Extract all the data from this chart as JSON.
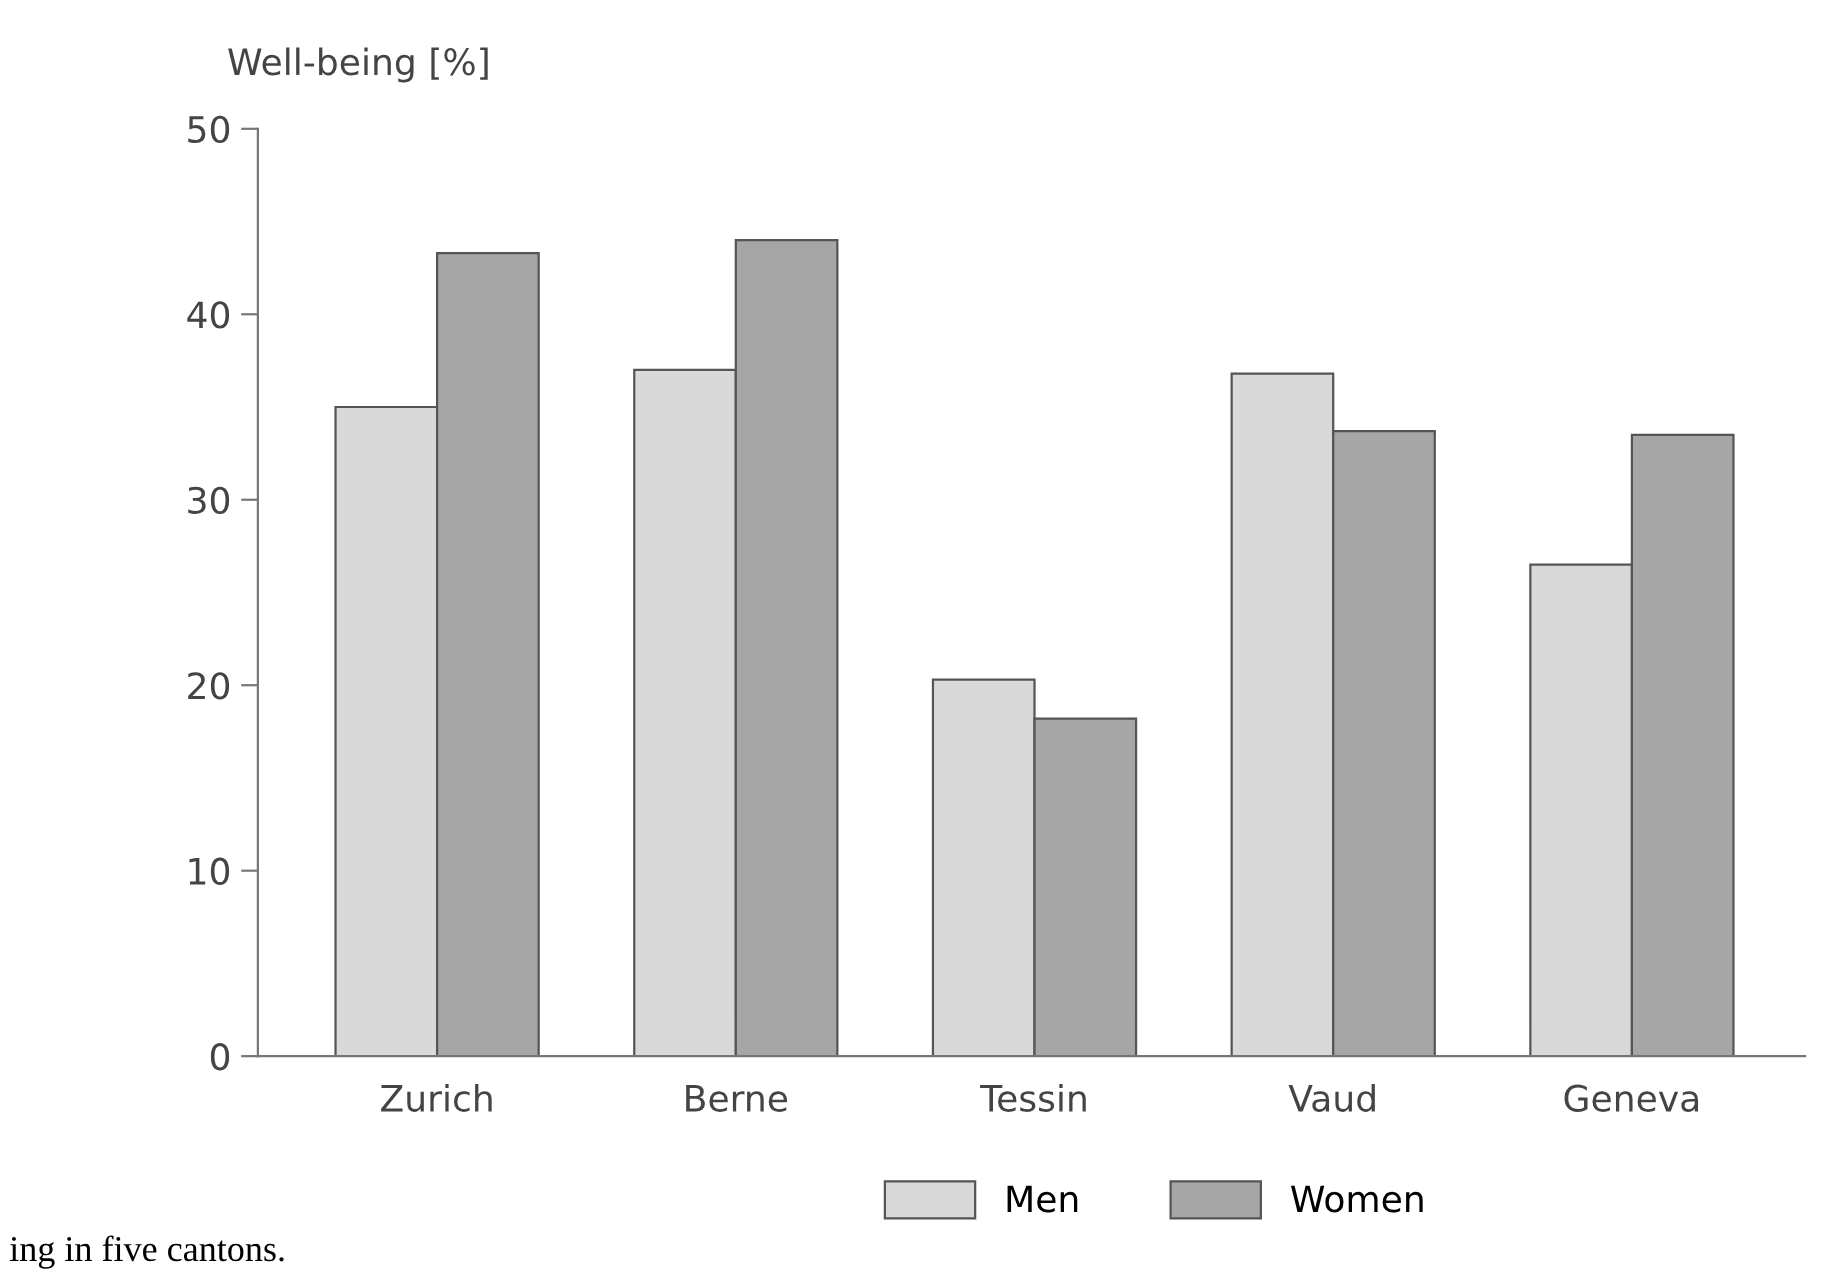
{
  "chart_data": {
    "type": "bar",
    "ylabel": "Well-being [%]",
    "categories": [
      "Zurich",
      "Berne",
      "Tessin",
      "Vaud",
      "Geneva"
    ],
    "series": [
      {
        "name": "Men",
        "color": "#d9d9d9",
        "values": [
          35.0,
          37.0,
          20.3,
          36.8,
          26.5
        ]
      },
      {
        "name": "Women",
        "color": "#a6a6a6",
        "values": [
          43.3,
          44.0,
          18.2,
          33.7,
          33.5
        ]
      }
    ],
    "ylim": [
      0,
      50
    ],
    "yticks": [
      0,
      10,
      20,
      30,
      40,
      50
    ],
    "grid": false,
    "legend": "bottom",
    "annotations": [
      "ing in five cantons."
    ]
  }
}
